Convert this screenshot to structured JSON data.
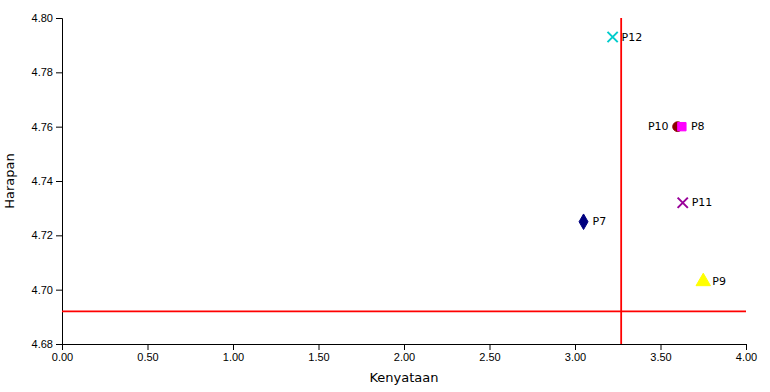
{
  "chart_data": {
    "type": "scatter",
    "xlabel": "Kenyataan",
    "ylabel": "Harapan",
    "point_labels": [
      "P12",
      "P10",
      "P8",
      "P11",
      "P7",
      "P9"
    ],
    "x": [
      3.22,
      3.6,
      3.625,
      3.63,
      3.05,
      3.75
    ],
    "values": [
      4.793,
      4.76,
      4.76,
      4.732,
      4.725,
      4.703
    ],
    "colors": [
      "#00CCCC",
      "#8B0000",
      "#FF00FF",
      "#990099",
      "#000080",
      "#FFFF00"
    ],
    "markers": [
      "x",
      "circle",
      "square",
      "x",
      "diamond",
      "triangle"
    ],
    "reference_lines": [
      {
        "axis": "x",
        "value": 3.27,
        "color": "#FF0000"
      },
      {
        "axis": "y",
        "value": 4.692,
        "color": "#FF0000"
      }
    ],
    "xlim": [
      0.0,
      4.0
    ],
    "ylim": [
      4.68,
      4.8
    ],
    "xticks": [
      {
        "value": 0.0,
        "label": "0.00"
      },
      {
        "value": 0.5,
        "label": "0.50"
      },
      {
        "value": 1.0,
        "label": "1.00"
      },
      {
        "value": 1.5,
        "label": "1.50"
      },
      {
        "value": 2.0,
        "label": "2.00"
      },
      {
        "value": 2.5,
        "label": "2.50"
      },
      {
        "value": 3.0,
        "label": "3.00"
      },
      {
        "value": 3.5,
        "label": "3.50"
      },
      {
        "value": 4.0,
        "label": "4.00"
      }
    ],
    "yticks": [
      4.68,
      {
        "value": 4.7,
        "label": "4.70"
      },
      4.72,
      4.74,
      4.76,
      4.78,
      {
        "value": 4.8,
        "label": "4.80"
      }
    ],
    "grid": false
  }
}
